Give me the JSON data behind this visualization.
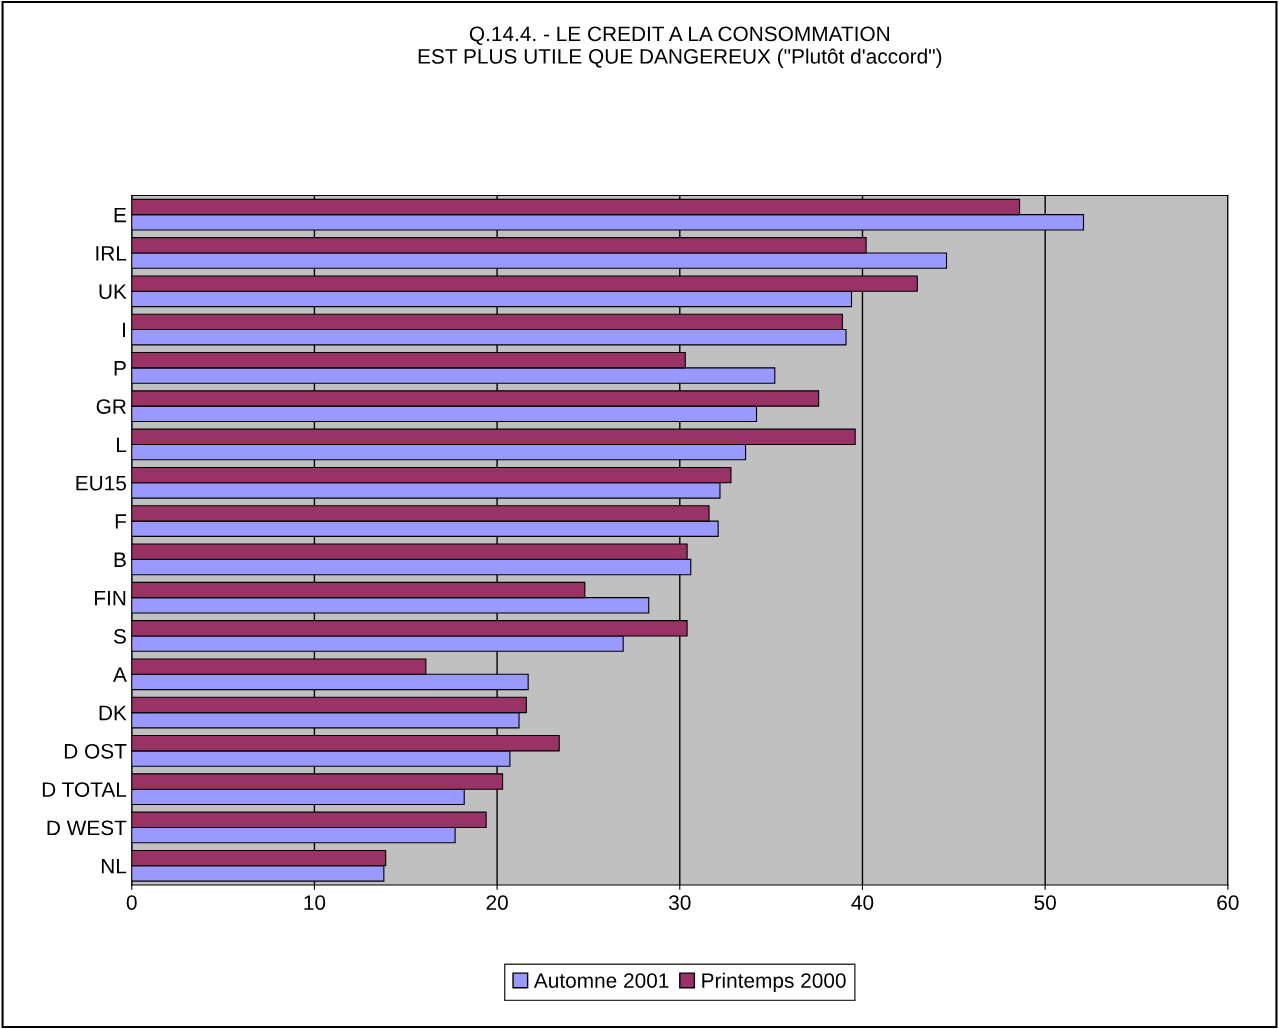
{
  "chart_data": {
    "type": "bar",
    "orientation": "horizontal",
    "title": "Q.14.4. - LE CREDIT A LA CONSOMMATION\nEST PLUS UTILE QUE DANGEREUX (\"Plutôt d'accord\")",
    "categories": [
      "E",
      "IRL",
      "UK",
      "I",
      "P",
      "GR",
      "L",
      "EU15",
      "F",
      "B",
      "FIN",
      "S",
      "A",
      "DK",
      "D OST",
      "D TOTAL",
      "D WEST",
      "NL"
    ],
    "series": [
      {
        "name": "Automne 2001",
        "color": "#9999ff",
        "values": [
          52.1,
          44.6,
          39.4,
          39.1,
          35.2,
          34.2,
          33.6,
          32.2,
          32.1,
          30.6,
          28.3,
          26.9,
          21.7,
          21.2,
          20.7,
          18.2,
          17.7,
          13.8
        ]
      },
      {
        "name": "Printemps 2000",
        "color": "#993366",
        "values": [
          48.6,
          40.2,
          43.0,
          38.9,
          30.3,
          37.6,
          39.6,
          32.8,
          31.6,
          30.4,
          24.8,
          30.4,
          16.1,
          21.6,
          23.4,
          20.3,
          19.4,
          13.9
        ]
      }
    ],
    "xlim": [
      0,
      60
    ],
    "xticks": [
      0,
      10,
      20,
      30,
      40,
      50,
      60
    ],
    "grid": "x",
    "legend": "bottom"
  }
}
